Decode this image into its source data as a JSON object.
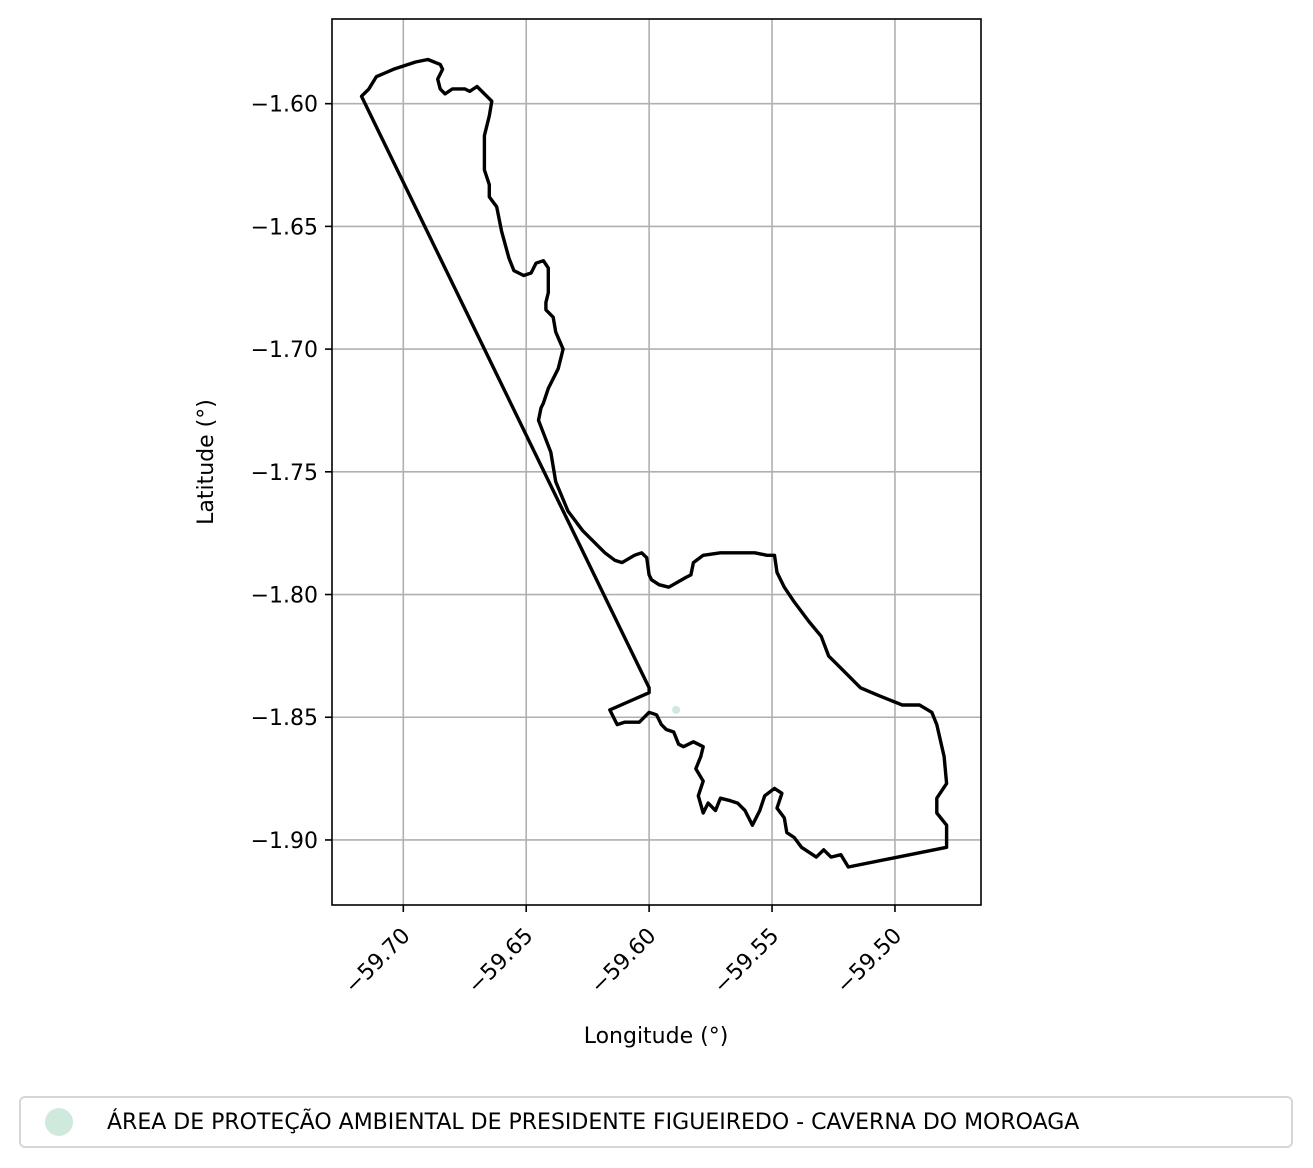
{
  "chart_data": {
    "type": "map",
    "xlabel": "Longitude (°)",
    "ylabel": "Latitude (°)",
    "xlim": [
      -59.729,
      -59.465
    ],
    "ylim": [
      -1.9265,
      -1.5655
    ],
    "xticks": [
      -59.7,
      -59.65,
      -59.6,
      -59.55,
      -59.5
    ],
    "xtick_labels": [
      "−59.70",
      "−59.65",
      "−59.60",
      "−59.55",
      "−59.50"
    ],
    "yticks": [
      -1.6,
      -1.65,
      -1.7,
      -1.75,
      -1.8,
      -1.85,
      -1.9
    ],
    "ytick_labels": [
      "−1.60",
      "−1.65",
      "−1.70",
      "−1.75",
      "−1.80",
      "−1.85",
      "−1.90"
    ],
    "grid": true,
    "outline_color": "#000000",
    "fill_color": "#cfe9dd",
    "boundary": [
      [
        -59.6,
        -1.838
      ],
      [
        -59.717,
        -1.597
      ],
      [
        -59.714,
        -1.594
      ],
      [
        -59.711,
        -1.589
      ],
      [
        -59.704,
        -1.586
      ],
      [
        -59.695,
        -1.583
      ],
      [
        -59.69,
        -1.582
      ],
      [
        -59.685,
        -1.584
      ],
      [
        -59.684,
        -1.586
      ],
      [
        -59.686,
        -1.59
      ],
      [
        -59.685,
        -1.594
      ],
      [
        -59.683,
        -1.596
      ],
      [
        -59.68,
        -1.594
      ],
      [
        -59.675,
        -1.594
      ],
      [
        -59.673,
        -1.595
      ],
      [
        -59.67,
        -1.593
      ],
      [
        -59.664,
        -1.599
      ],
      [
        -59.665,
        -1.605
      ],
      [
        -59.667,
        -1.613
      ],
      [
        -59.667,
        -1.627
      ],
      [
        -59.665,
        -1.633
      ],
      [
        -59.665,
        -1.638
      ],
      [
        -59.662,
        -1.642
      ],
      [
        -59.66,
        -1.652
      ],
      [
        -59.657,
        -1.663
      ],
      [
        -59.655,
        -1.668
      ],
      [
        -59.651,
        -1.67
      ],
      [
        -59.648,
        -1.669
      ],
      [
        -59.646,
        -1.665
      ],
      [
        -59.643,
        -1.664
      ],
      [
        -59.641,
        -1.667
      ],
      [
        -59.641,
        -1.677
      ],
      [
        -59.642,
        -1.681
      ],
      [
        -59.642,
        -1.684
      ],
      [
        -59.639,
        -1.687
      ],
      [
        -59.638,
        -1.693
      ],
      [
        -59.635,
        -1.7
      ],
      [
        -59.637,
        -1.708
      ],
      [
        -59.641,
        -1.716
      ],
      [
        -59.643,
        -1.722
      ],
      [
        -59.644,
        -1.724
      ],
      [
        -59.645,
        -1.729
      ],
      [
        -59.64,
        -1.742
      ],
      [
        -59.638,
        -1.754
      ],
      [
        -59.633,
        -1.766
      ],
      [
        -59.627,
        -1.774
      ],
      [
        -59.621,
        -1.78
      ],
      [
        -59.618,
        -1.783
      ],
      [
        -59.614,
        -1.786
      ],
      [
        -59.611,
        -1.787
      ],
      [
        -59.606,
        -1.784
      ],
      [
        -59.603,
        -1.783
      ],
      [
        -59.601,
        -1.785
      ],
      [
        -59.6,
        -1.792
      ],
      [
        -59.599,
        -1.794
      ],
      [
        -59.596,
        -1.796
      ],
      [
        -59.592,
        -1.797
      ],
      [
        -59.585,
        -1.793
      ],
      [
        -59.583,
        -1.792
      ],
      [
        -59.582,
        -1.787
      ],
      [
        -59.578,
        -1.784
      ],
      [
        -59.571,
        -1.783
      ],
      [
        -59.564,
        -1.783
      ],
      [
        -59.557,
        -1.783
      ],
      [
        -59.552,
        -1.784
      ],
      [
        -59.549,
        -1.784
      ],
      [
        -59.548,
        -1.791
      ],
      [
        -59.545,
        -1.797
      ],
      [
        -59.541,
        -1.803
      ],
      [
        -59.535,
        -1.811
      ],
      [
        -59.53,
        -1.817
      ],
      [
        -59.527,
        -1.825
      ],
      [
        -59.52,
        -1.832
      ],
      [
        -59.514,
        -1.838
      ],
      [
        -59.507,
        -1.841
      ],
      [
        -59.497,
        -1.845
      ],
      [
        -59.49,
        -1.845
      ],
      [
        -59.485,
        -1.848
      ],
      [
        -59.483,
        -1.853
      ],
      [
        -59.48,
        -1.866
      ],
      [
        -59.479,
        -1.877
      ],
      [
        -59.483,
        -1.883
      ],
      [
        -59.483,
        -1.889
      ],
      [
        -59.479,
        -1.894
      ],
      [
        -59.479,
        -1.899
      ],
      [
        -59.479,
        -1.903
      ],
      [
        -59.519,
        -1.911
      ],
      [
        -59.522,
        -1.906
      ],
      [
        -59.526,
        -1.907
      ],
      [
        -59.529,
        -1.904
      ],
      [
        -59.532,
        -1.907
      ],
      [
        -59.538,
        -1.903
      ],
      [
        -59.541,
        -1.899
      ],
      [
        -59.544,
        -1.897
      ],
      [
        -59.545,
        -1.891
      ],
      [
        -59.548,
        -1.887
      ],
      [
        -59.546,
        -1.881
      ],
      [
        -59.549,
        -1.879
      ],
      [
        -59.553,
        -1.882
      ],
      [
        -59.555,
        -1.888
      ],
      [
        -59.558,
        -1.894
      ],
      [
        -59.561,
        -1.888
      ],
      [
        -59.564,
        -1.885
      ],
      [
        -59.567,
        -1.884
      ],
      [
        -59.571,
        -1.883
      ],
      [
        -59.573,
        -1.888
      ],
      [
        -59.576,
        -1.885
      ],
      [
        -59.578,
        -1.889
      ],
      [
        -59.58,
        -1.882
      ],
      [
        -59.578,
        -1.876
      ],
      [
        -59.581,
        -1.871
      ],
      [
        -59.579,
        -1.866
      ],
      [
        -59.578,
        -1.862
      ],
      [
        -59.582,
        -1.86
      ],
      [
        -59.586,
        -1.862
      ],
      [
        -59.588,
        -1.861
      ],
      [
        -59.59,
        -1.856
      ],
      [
        -59.593,
        -1.855
      ],
      [
        -59.595,
        -1.853
      ],
      [
        -59.597,
        -1.849
      ],
      [
        -59.6,
        -1.848
      ],
      [
        -59.604,
        -1.852
      ],
      [
        -59.61,
        -1.852
      ],
      [
        -59.613,
        -1.853
      ],
      [
        -59.616,
        -1.847
      ],
      [
        -59.6,
        -1.84
      ]
    ]
  },
  "legend": {
    "label": "ÁREA DE PROTEÇÃO AMBIENTAL DE PRESIDENTE FIGUEIREDO - CAVERNA DO MOROAGA",
    "marker_color": "#cfe9dd"
  }
}
